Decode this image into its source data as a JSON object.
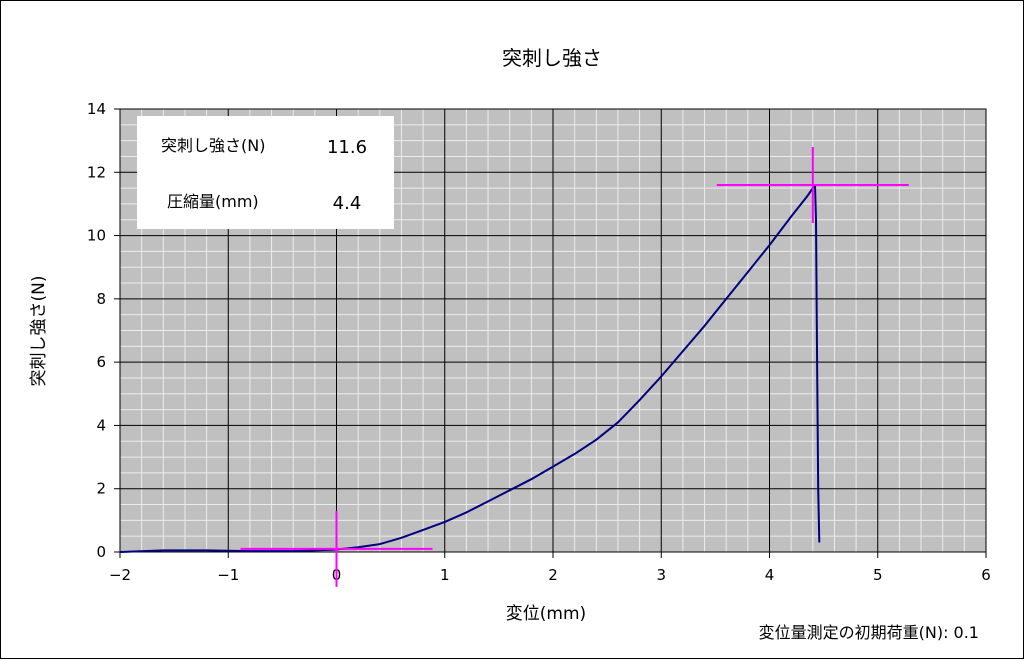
{
  "chart_data": {
    "type": "line",
    "title": "突刺し強さ",
    "xlabel": "変位(mm)",
    "ylabel": "突刺し強さ(N)",
    "xlim": [
      -2,
      6
    ],
    "ylim": [
      0,
      14
    ],
    "x_ticks": [
      -2,
      -1,
      0,
      1,
      2,
      3,
      4,
      5,
      6
    ],
    "y_ticks": [
      0,
      2,
      4,
      6,
      8,
      10,
      12,
      14
    ],
    "x_tick_labels": [
      "−2",
      "−1",
      "0",
      "1",
      "2",
      "3",
      "4",
      "5",
      "6"
    ],
    "y_tick_labels": [
      "0",
      "2",
      "4",
      "6",
      "8",
      "10",
      "12",
      "14"
    ],
    "grid": true,
    "colors": {
      "plot_bg": "#c0c0c0",
      "minor_grid": "#ececec",
      "major_grid": "#000000",
      "series": "#000080",
      "marker": "#ff00ff"
    },
    "series": [
      {
        "x": [
          -2.0,
          -1.6,
          -1.2,
          -0.8,
          -0.4,
          -0.2,
          0.0,
          0.2,
          0.4,
          0.6,
          0.8,
          1.0,
          1.2,
          1.4,
          1.6,
          1.8,
          2.0,
          2.2,
          2.4,
          2.6,
          2.8,
          3.0,
          3.2,
          3.4,
          3.6,
          3.8,
          4.0,
          4.2,
          4.35,
          4.42,
          4.43,
          4.44,
          4.45,
          4.46
        ],
        "y": [
          0.0,
          0.05,
          0.05,
          0.03,
          0.03,
          0.05,
          0.08,
          0.15,
          0.25,
          0.45,
          0.7,
          0.95,
          1.25,
          1.6,
          1.95,
          2.3,
          2.7,
          3.1,
          3.55,
          4.1,
          4.8,
          5.55,
          6.35,
          7.15,
          8.0,
          8.85,
          9.7,
          10.6,
          11.25,
          11.6,
          10.5,
          6.0,
          2.0,
          0.3
        ]
      }
    ],
    "markers": [
      {
        "x": 0.0,
        "y": 0.1
      },
      {
        "x": 4.4,
        "y": 11.6
      }
    ],
    "info_box": {
      "rows": [
        {
          "label": "突刺し強さ(N)",
          "value": "11.6"
        },
        {
          "label": "圧縮量(mm)",
          "value": "4.4"
        }
      ]
    },
    "note": "変位量測定の初期荷重(N): 0.1"
  }
}
